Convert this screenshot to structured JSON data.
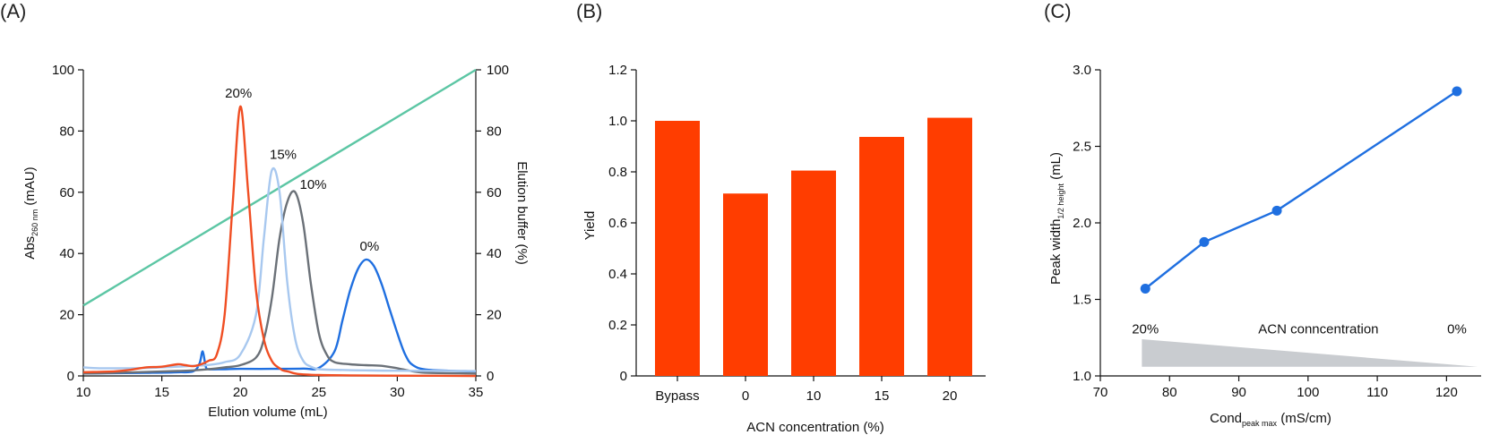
{
  "chart_data": [
    {
      "panel": "(A)",
      "type": "line",
      "xlabel": "Elution volume (mL)",
      "ylabel_main": "Abs",
      "ylabel_sub": "260 nm",
      "ylabel_unit": " (mAU)",
      "y2label": "Elution buffer (%)",
      "xlim": [
        10,
        35
      ],
      "ylim": [
        0,
        100
      ],
      "y2lim": [
        0,
        100
      ],
      "xticks": [
        10,
        15,
        20,
        25,
        30,
        35
      ],
      "yticks": [
        0,
        20,
        40,
        60,
        80,
        100
      ],
      "y2ticks": [
        0,
        20,
        40,
        60,
        80,
        100
      ],
      "colors": {
        "20%": "#f04e23",
        "15%": "#a8c8ef",
        "10%": "#6b7178",
        "0%": "#1f6fe0",
        "gradient": "#5cc6a4"
      },
      "series": [
        {
          "name": "20%",
          "x": [
            10,
            12,
            13,
            14,
            15,
            16,
            16.5,
            17,
            17.5,
            18,
            18.5,
            19,
            19.5,
            20,
            20.5,
            21,
            21.5,
            22,
            22.5,
            23,
            25,
            35
          ],
          "y": [
            1.2,
            1.5,
            2,
            2.8,
            3,
            3.8,
            3.5,
            3.2,
            3.8,
            5,
            7,
            20,
            55,
            88,
            60,
            28,
            12,
            5,
            2.5,
            1.5,
            0.3,
            0
          ]
        },
        {
          "name": "15%",
          "x": [
            10,
            11,
            12,
            13,
            14,
            15,
            16,
            17,
            18,
            19,
            20,
            21,
            21.5,
            22,
            22.5,
            23,
            23.5,
            24,
            24.5,
            25,
            26,
            28,
            30,
            35
          ],
          "y": [
            2.8,
            2.5,
            2.5,
            2.5,
            2.6,
            2.8,
            3,
            3.3,
            3.6,
            4.5,
            7,
            20,
            45,
            67,
            60,
            30,
            12,
            5,
            3,
            2.2,
            2,
            1.8,
            1.7,
            1.6
          ]
        },
        {
          "name": "10%",
          "x": [
            10,
            12,
            14,
            16,
            17,
            18,
            19,
            20,
            21,
            21.5,
            22,
            22.5,
            23,
            23.5,
            24,
            24.5,
            25,
            25.5,
            26,
            27,
            28,
            29,
            30,
            31,
            32,
            35
          ],
          "y": [
            0.8,
            1,
            1.3,
            1.6,
            1.8,
            2.2,
            2.8,
            3.5,
            6,
            12,
            25,
            45,
            57,
            60,
            50,
            30,
            14,
            7,
            4.5,
            3.8,
            3.5,
            3.3,
            2.5,
            1.5,
            1,
            0.8
          ]
        },
        {
          "name": "0%",
          "x": [
            10,
            12,
            14,
            16,
            17,
            17.4,
            17.6,
            17.8,
            18,
            19,
            20,
            22,
            24,
            25,
            26,
            26.5,
            27,
            27.5,
            28,
            28.5,
            29,
            29.5,
            30,
            30.5,
            31,
            32,
            35
          ],
          "y": [
            0.8,
            0.9,
            1,
            1.2,
            1.5,
            4,
            8,
            3,
            2.2,
            2.2,
            2.3,
            2.3,
            2.4,
            2.6,
            8,
            18,
            28,
            35,
            38,
            36,
            30,
            22,
            14,
            7,
            3.5,
            2,
            1.5
          ]
        }
      ],
      "gradient": {
        "x": [
          10,
          35
        ],
        "y2": [
          23,
          100
        ]
      },
      "annotations": [
        "20%",
        "15%",
        "10%",
        "0%"
      ]
    },
    {
      "panel": "(B)",
      "type": "bar",
      "categories": [
        "Bypass",
        "0",
        "10",
        "15",
        "20"
      ],
      "values": [
        1.0,
        0.715,
        0.805,
        0.937,
        1.012
      ],
      "xlabel": "ACN concentration (%)",
      "ylabel": "Yield",
      "ylim": [
        0,
        1.2
      ],
      "yticks": [
        "0",
        "0.2",
        "0.4",
        "0.6",
        "0.8",
        "1.0",
        "1.2"
      ],
      "color": "#ff3d00"
    },
    {
      "panel": "(C)",
      "type": "line",
      "x": [
        76.5,
        85,
        95.5,
        121.5
      ],
      "y": [
        1.57,
        1.875,
        2.08,
        2.86
      ],
      "xlabel_main": "Cond",
      "xlabel_sub": "peak max",
      "xlabel_unit": " (mS/cm)",
      "ylabel_main": "Peak width",
      "ylabel_sub": "1/2 height",
      "ylabel_unit": " (mL)",
      "xlim": [
        70,
        125
      ],
      "ylim": [
        1.0,
        3.0
      ],
      "xticks": [
        "70",
        "80",
        "90",
        "100",
        "110",
        "120"
      ],
      "yticks": [
        "1.0",
        "1.5",
        "2.0",
        "2.5",
        "3.0"
      ],
      "color": "#1f6fe0",
      "wedge_color": "#c9ccd0",
      "wedge_labels": {
        "left": "20%",
        "center": "ACN conncentration",
        "right": "0%"
      }
    }
  ]
}
